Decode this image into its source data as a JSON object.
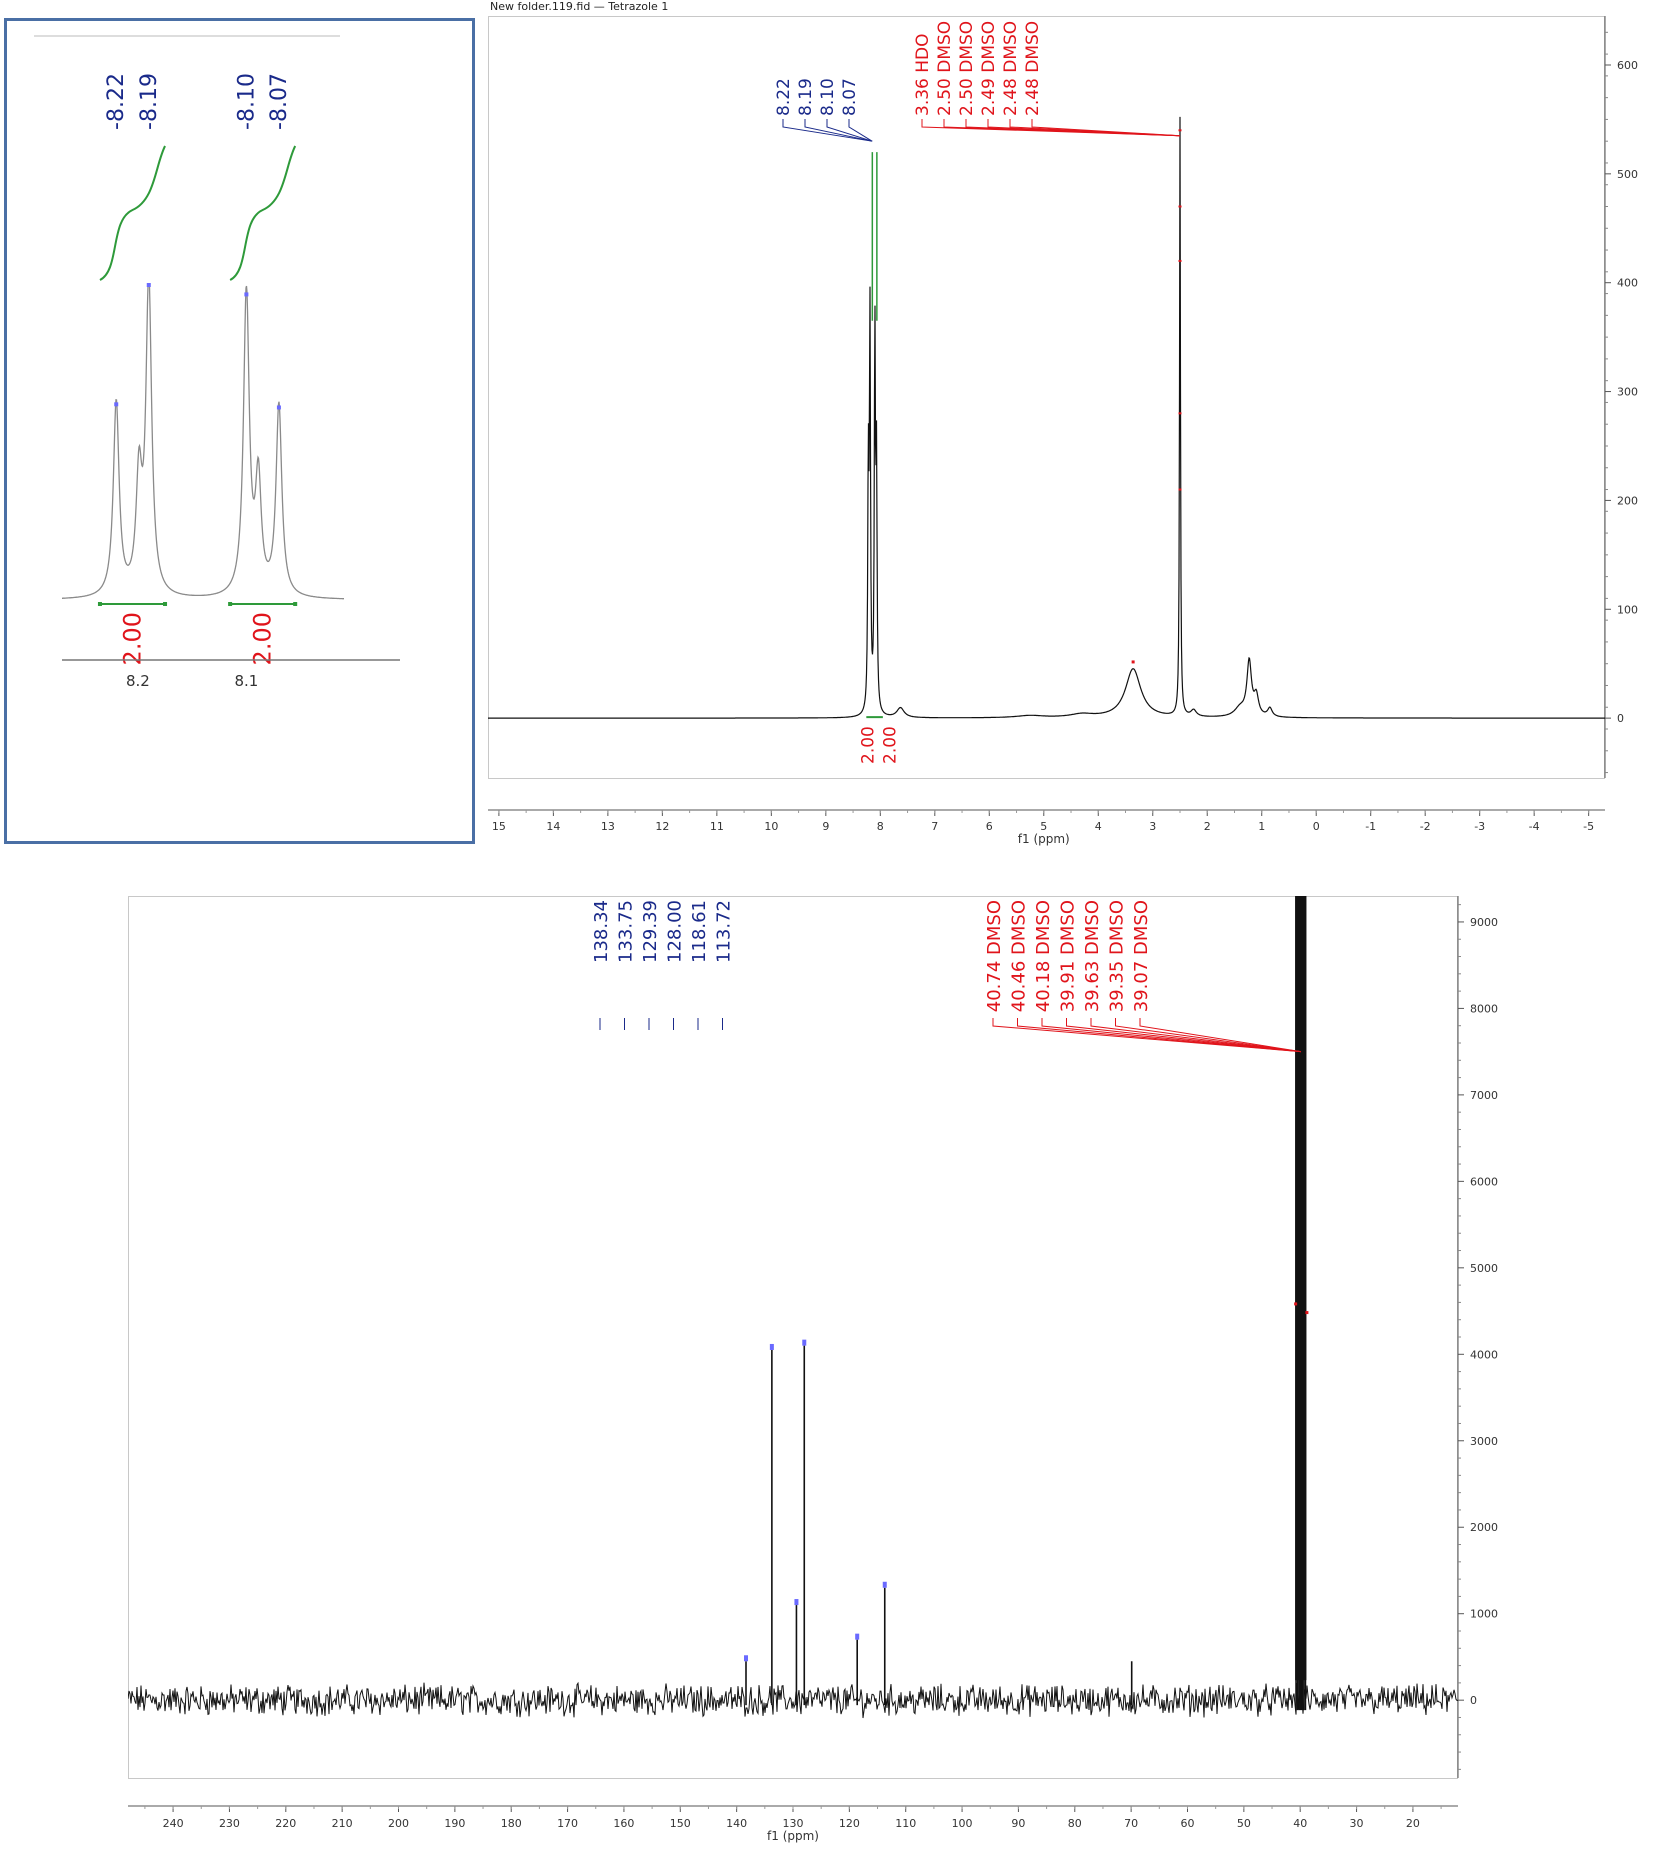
{
  "file_title": "New folder.119.fid — Tetrazole 1",
  "colors": {
    "spectrum": "#111111",
    "peak_label": "#1a2a8a",
    "solvent_label": "#e0141b",
    "integral": "#2e9a3a",
    "inset_border": "#4a6fa5",
    "peak_marker": "#6a6aff"
  },
  "chart_data": [
    {
      "id": "h1_inset",
      "type": "line",
      "x_range": [
        8.27,
        8.01
      ],
      "x_ticks": [
        {
          "value": 8.2,
          "label": "8.2"
        },
        {
          "value": 8.1,
          "label": "8.1"
        }
      ],
      "peak_labels": [
        {
          "label": "-8.22",
          "x": 8.22
        },
        {
          "label": "-8.19",
          "x": 8.19
        },
        {
          "label": "-8.10",
          "x": 8.1
        },
        {
          "label": "-8.07",
          "x": 8.07
        }
      ],
      "integrals": [
        {
          "value": "2.00",
          "from": 8.235,
          "to": 8.175
        },
        {
          "value": "2.00",
          "from": 8.115,
          "to": 8.055
        }
      ],
      "peaks": [
        {
          "x": 8.22,
          "height": 0.62
        },
        {
          "x": 8.199,
          "height": 0.36
        },
        {
          "x": 8.19,
          "height": 1.0
        },
        {
          "x": 8.1,
          "height": 0.97
        },
        {
          "x": 8.089,
          "height": 0.36
        },
        {
          "x": 8.07,
          "height": 0.61
        }
      ]
    },
    {
      "id": "h1_full",
      "type": "line",
      "x_range": [
        15.2,
        -5.3
      ],
      "xlabel": "f1 (ppm)",
      "x_ticks": [
        15,
        14,
        13,
        12,
        11,
        10,
        9,
        8,
        7,
        6,
        5,
        4,
        3,
        2,
        1,
        0,
        -1,
        -2,
        -3,
        -4,
        -5
      ],
      "y_ticks": [
        0,
        100,
        200,
        300,
        400,
        500,
        600
      ],
      "ylim": [
        -55,
        645
      ],
      "peak_labels": [
        "8.22",
        "8.19",
        "8.10",
        "8.07"
      ],
      "solvent_labels": [
        "3.36 HDO",
        "2.50 DMSO",
        "2.50 DMSO",
        "2.49 DMSO",
        "2.48 DMSO",
        "2.48 DMSO"
      ],
      "integrals": [
        "2.00",
        "2.00"
      ],
      "peaks": [
        {
          "x": 8.22,
          "height": 220,
          "w": 0.012
        },
        {
          "x": 8.19,
          "height": 360,
          "w": 0.012
        },
        {
          "x": 8.1,
          "height": 350,
          "w": 0.012
        },
        {
          "x": 8.07,
          "height": 220,
          "w": 0.012
        },
        {
          "x": 7.63,
          "height": 9,
          "w": 0.08
        },
        {
          "x": 5.25,
          "height": 2,
          "w": 0.3
        },
        {
          "x": 4.3,
          "height": 3,
          "w": 0.25
        },
        {
          "x": 3.36,
          "height": 45,
          "w": 0.17
        },
        {
          "x": 2.5,
          "height": 550,
          "w": 0.01
        },
        {
          "x": 2.25,
          "height": 6,
          "w": 0.06
        },
        {
          "x": 1.4,
          "height": 8,
          "w": 0.12
        },
        {
          "x": 1.23,
          "height": 50,
          "w": 0.05
        },
        {
          "x": 1.1,
          "height": 18,
          "w": 0.05
        },
        {
          "x": 0.85,
          "height": 8,
          "w": 0.05
        }
      ]
    },
    {
      "id": "c13",
      "type": "line",
      "x_range": [
        248,
        12
      ],
      "xlabel": "f1 (ppm)",
      "x_ticks": [
        240,
        230,
        220,
        210,
        200,
        190,
        180,
        170,
        160,
        150,
        140,
        130,
        120,
        110,
        100,
        90,
        80,
        70,
        60,
        50,
        40,
        30,
        20
      ],
      "y_ticks": [
        0,
        1000,
        2000,
        3000,
        4000,
        5000,
        6000,
        7000,
        8000,
        9000
      ],
      "ylim": [
        -900,
        9300
      ],
      "peak_labels": [
        "138.34",
        "133.75",
        "129.39",
        "128.00",
        "118.61",
        "113.72"
      ],
      "solvent_labels": [
        "40.74 DMSO",
        "40.46 DMSO",
        "40.18 DMSO",
        "39.91 DMSO",
        "39.63 DMSO",
        "39.35 DMSO",
        "39.07 DMSO"
      ],
      "peaks": [
        {
          "x": 138.34,
          "height": 450
        },
        {
          "x": 133.75,
          "height": 4050
        },
        {
          "x": 129.39,
          "height": 1100
        },
        {
          "x": 128.0,
          "height": 4100
        },
        {
          "x": 118.61,
          "height": 700
        },
        {
          "x": 113.72,
          "height": 1300
        },
        {
          "x": 69.9,
          "height": 450
        }
      ]
    }
  ]
}
